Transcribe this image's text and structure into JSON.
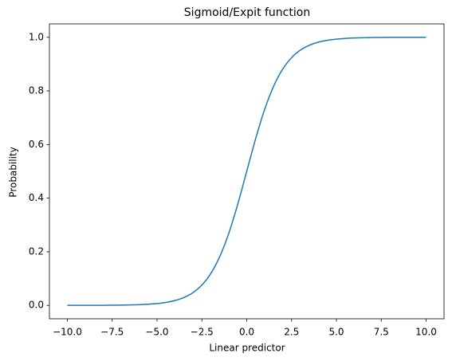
{
  "chart_data": {
    "type": "line",
    "title": "Sigmoid/Expit function",
    "xlabel": "Linear predictor",
    "ylabel": "Probability",
    "x": [
      -10,
      -9.5,
      -9,
      -8.5,
      -8,
      -7.5,
      -7,
      -6.5,
      -6,
      -5.5,
      -5,
      -4.5,
      -4,
      -3.5,
      -3,
      -2.5,
      -2,
      -1.5,
      -1,
      -0.5,
      0,
      0.5,
      1,
      1.5,
      2,
      2.5,
      3,
      3.5,
      4,
      4.5,
      5,
      5.5,
      6,
      6.5,
      7,
      7.5,
      8,
      8.5,
      9,
      9.5,
      10
    ],
    "series": [
      {
        "color": "#1f77b4",
        "values": [
          0.0,
          0.0001,
          0.0001,
          0.0002,
          0.0003,
          0.0006,
          0.0009,
          0.0015,
          0.0025,
          0.0041,
          0.0067,
          0.011,
          0.018,
          0.0293,
          0.0474,
          0.0759,
          0.1192,
          0.1824,
          0.2689,
          0.3775,
          0.5,
          0.6225,
          0.7311,
          0.8176,
          0.8808,
          0.9241,
          0.9526,
          0.9707,
          0.982,
          0.989,
          0.9933,
          0.9959,
          0.9975,
          0.9985,
          0.9991,
          0.9994,
          0.9997,
          0.9998,
          0.9999,
          0.9999,
          1.0
        ]
      }
    ],
    "xlim": [
      -11,
      11
    ],
    "ylim": [
      -0.05,
      1.05
    ],
    "xticks": [
      {
        "value": -10,
        "label": "−10.0"
      },
      {
        "value": -7.5,
        "label": "−7.5"
      },
      {
        "value": -5,
        "label": "−5.0"
      },
      {
        "value": -2.5,
        "label": "−2.5"
      },
      {
        "value": 0,
        "label": "0.0"
      },
      {
        "value": 2.5,
        "label": "2.5"
      },
      {
        "value": 5,
        "label": "5.0"
      },
      {
        "value": 7.5,
        "label": "7.5"
      },
      {
        "value": 10,
        "label": "10.0"
      }
    ],
    "yticks": [
      {
        "value": 0,
        "label": "0.0"
      },
      0.2,
      0.4,
      0.6,
      0.8,
      {
        "value": 1,
        "label": "1.0"
      }
    ],
    "grid": false
  }
}
